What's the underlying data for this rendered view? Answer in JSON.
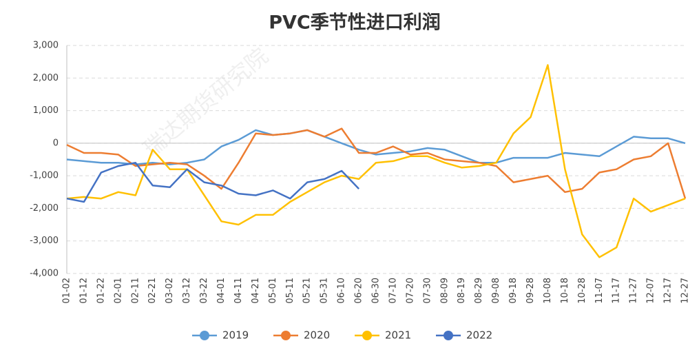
{
  "chart_data": {
    "type": "line",
    "title": "PVC季节性进口利润",
    "watermark": "瑞达期货研究院",
    "categories": [
      "01-02",
      "01-12",
      "01-22",
      "02-01",
      "02-11",
      "02-21",
      "03-02",
      "03-12",
      "03-22",
      "04-01",
      "04-11",
      "04-21",
      "05-01",
      "05-11",
      "05-21",
      "05-31",
      "06-10",
      "06-20",
      "06-30",
      "07-10",
      "07-20",
      "07-30",
      "08-09",
      "08-19",
      "08-29",
      "09-08",
      "09-18",
      "09-28",
      "10-08",
      "10-18",
      "10-28",
      "11-07",
      "11-17",
      "11-27",
      "12-07",
      "12-17",
      "12-27"
    ],
    "series": [
      {
        "name": "2019",
        "color": "#5b9bd5",
        "values": [
          -500,
          -550,
          -600,
          -600,
          -650,
          -600,
          -650,
          -600,
          -500,
          -100,
          100,
          400,
          250,
          300,
          400,
          200,
          0,
          -200,
          -350,
          -300,
          -250,
          -150,
          -200,
          -400,
          -600,
          -600,
          -450,
          -450,
          -450,
          -300,
          -350,
          -400,
          -100,
          200,
          150,
          150,
          0
        ]
      },
      {
        "name": "2020",
        "color": "#ed7d31",
        "values": [
          -50,
          -300,
          -300,
          -350,
          -700,
          -650,
          -600,
          -650,
          -1000,
          -1400,
          -600,
          300,
          250,
          300,
          400,
          200,
          450,
          -300,
          -300,
          -100,
          -350,
          -300,
          -500,
          -550,
          -600,
          -700,
          -1200,
          -1100,
          -1000,
          -1500,
          -1400,
          -900,
          -800,
          -500,
          -400,
          0,
          -1700
        ]
      },
      {
        "name": "2021",
        "color": "#ffc000",
        "values": [
          -1700,
          -1650,
          -1700,
          -1500,
          -1600,
          -200,
          -800,
          -800,
          -1600,
          -2400,
          -2500,
          -2200,
          -2200,
          -1800,
          -1500,
          -1200,
          -1000,
          -1100,
          -600,
          -550,
          -400,
          -400,
          -600,
          -750,
          -700,
          -600,
          300,
          800,
          2400,
          -800,
          -2800,
          -3500,
          -3200,
          -1700,
          -2100,
          -1900,
          -1700
        ]
      },
      {
        "name": "2022",
        "color": "#4472c4",
        "values": [
          -1700,
          -1800,
          -900,
          -700,
          -600,
          -1300,
          -1350,
          -800,
          -1200,
          -1300,
          -1550,
          -1600,
          -1450,
          -1700,
          -1200,
          -1100,
          -850,
          -1400,
          null,
          null,
          null,
          null,
          null,
          null,
          null,
          null,
          null,
          null,
          null,
          null,
          null,
          null,
          null,
          null,
          null,
          null,
          null
        ]
      }
    ],
    "ylim": [
      -4000,
      3000
    ],
    "yticks": [
      {
        "value": -4000,
        "label": "-4,000"
      },
      {
        "value": -3000,
        "label": "-3,000"
      },
      {
        "value": -2000,
        "label": "-2,000"
      },
      {
        "value": -1000,
        "label": "-1,000"
      },
      0,
      {
        "value": 1000,
        "label": "1,000"
      },
      {
        "value": 2000,
        "label": "2,000"
      },
      {
        "value": 3000,
        "label": "3,000"
      }
    ],
    "grid": true,
    "legend": "bottom"
  }
}
